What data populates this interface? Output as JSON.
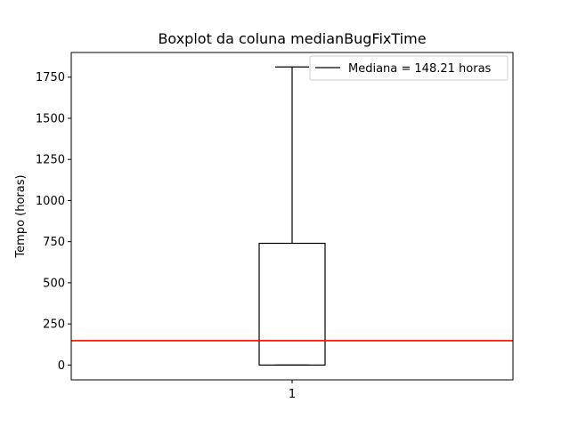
{
  "chart_data": {
    "type": "boxplot",
    "title": "Boxplot da coluna medianBugFixTime",
    "xlabel": "",
    "ylabel": "Tempo (horas)",
    "categories": [
      "1"
    ],
    "ylim": [
      -90,
      1900
    ],
    "yticks": [
      0,
      250,
      500,
      750,
      1000,
      1250,
      1500,
      1750
    ],
    "box": {
      "whisker_low": 0,
      "q1": 0,
      "median": 148.21,
      "q3": 740,
      "whisker_high": 1812
    },
    "hline": {
      "y": 148.21,
      "color": "#ff0000"
    },
    "median_color": "#ff7f0e",
    "legend": {
      "placement": "upper-right",
      "entries": [
        {
          "label": "Mediana = 148.21 horas",
          "color": "#000000"
        }
      ]
    },
    "grid": false
  }
}
